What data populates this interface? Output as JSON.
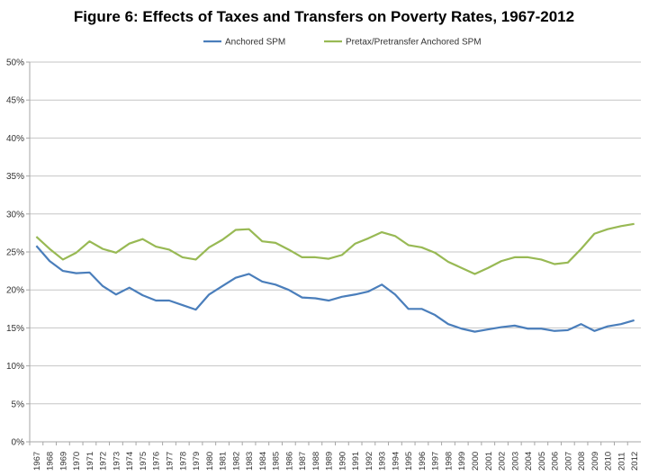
{
  "chart_data": {
    "type": "line",
    "title": "Figure 6: Effects of Taxes and Transfers on Poverty Rates, 1967-2012",
    "xlabel": "",
    "ylabel": "",
    "ylim": [
      0,
      50
    ],
    "yticks": [
      "0%",
      "5%",
      "10%",
      "15%",
      "20%",
      "25%",
      "30%",
      "35%",
      "40%",
      "45%",
      "50%"
    ],
    "grid": true,
    "legend_position": "top",
    "x": [
      1967,
      1968,
      1969,
      1970,
      1971,
      1972,
      1973,
      1974,
      1975,
      1976,
      1977,
      1978,
      1979,
      1980,
      1981,
      1982,
      1983,
      1984,
      1985,
      1986,
      1987,
      1988,
      1989,
      1990,
      1991,
      1992,
      1993,
      1994,
      1995,
      1996,
      1997,
      1998,
      1999,
      2000,
      2001,
      2002,
      2003,
      2004,
      2005,
      2006,
      2007,
      2008,
      2009,
      2010,
      2011,
      2012
    ],
    "series": [
      {
        "name": "Anchored SPM",
        "color": "#4a7ebb",
        "values": [
          25.8,
          23.8,
          22.5,
          22.2,
          22.3,
          20.5,
          19.4,
          20.3,
          19.3,
          18.6,
          18.6,
          18.0,
          17.4,
          19.4,
          20.5,
          21.6,
          22.1,
          21.1,
          20.7,
          20.0,
          19.0,
          18.9,
          18.6,
          19.1,
          19.4,
          19.8,
          20.7,
          19.4,
          17.5,
          17.5,
          16.7,
          15.5,
          14.9,
          14.5,
          14.8,
          15.1,
          15.3,
          14.9,
          14.9,
          14.6,
          14.7,
          15.5,
          14.6,
          15.2,
          15.5,
          16.0
        ]
      },
      {
        "name": "Pretax/Pretransfer Anchored SPM",
        "color": "#98b954",
        "values": [
          27.0,
          25.4,
          24.0,
          24.9,
          26.4,
          25.4,
          24.9,
          26.1,
          26.7,
          25.7,
          25.3,
          24.3,
          24.0,
          25.6,
          26.6,
          27.9,
          28.0,
          26.4,
          26.2,
          25.3,
          24.3,
          24.3,
          24.1,
          24.6,
          26.1,
          26.8,
          27.6,
          27.1,
          25.9,
          25.6,
          24.9,
          23.7,
          22.9,
          22.1,
          22.9,
          23.8,
          24.3,
          24.3,
          24.0,
          23.4,
          23.6,
          25.4,
          27.4,
          28.0,
          28.4,
          28.7
        ]
      }
    ]
  }
}
